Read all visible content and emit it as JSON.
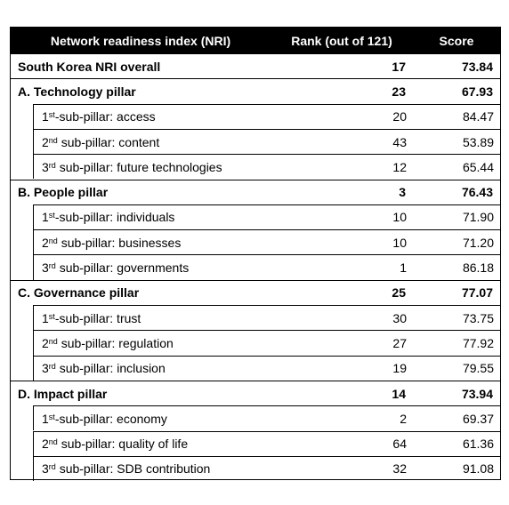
{
  "header": {
    "columns": [
      "Network readiness index (NRI)",
      "Rank (out of 121)",
      "Score"
    ]
  },
  "overall": {
    "label": "South Korea NRI overall",
    "rank": "17",
    "score": "73.84"
  },
  "pillars": [
    {
      "label": "A. Technology pillar",
      "rank": "23",
      "score": "67.93",
      "sub_pillars": [
        {
          "num": "1",
          "sup": "st",
          "rest": "-sub-pillar: access",
          "rank": "20",
          "score": "84.47"
        },
        {
          "num": "2",
          "sup": "nd",
          "rest": " sub-pillar: content",
          "rank": "43",
          "score": "53.89"
        },
        {
          "num": "3",
          "sup": "rd",
          "rest": " sub-pillar: future technologies",
          "rank": "12",
          "score": "65.44"
        }
      ]
    },
    {
      "label": "B. People pillar",
      "rank": "3",
      "score": "76.43",
      "sub_pillars": [
        {
          "num": "1",
          "sup": "st",
          "rest": "-sub-pillar: individuals",
          "rank": "10",
          "score": "71.90"
        },
        {
          "num": "2",
          "sup": "nd",
          "rest": " sub-pillar: businesses",
          "rank": "10",
          "score": "71.20"
        },
        {
          "num": "3",
          "sup": "rd",
          "rest": " sub-pillar: governments",
          "rank": "1",
          "score": "86.18"
        }
      ]
    },
    {
      "label": "C. Governance pillar",
      "rank": "25",
      "score": "77.07",
      "sub_pillars": [
        {
          "num": "1",
          "sup": "st",
          "rest": "-sub-pillar: trust",
          "rank": "30",
          "score": "73.75"
        },
        {
          "num": "2",
          "sup": "nd",
          "rest": " sub-pillar: regulation",
          "rank": "27",
          "score": "77.92"
        },
        {
          "num": "3",
          "sup": "rd",
          "rest": " sub-pillar: inclusion",
          "rank": "19",
          "score": "79.55"
        }
      ]
    },
    {
      "label": "D. Impact pillar",
      "rank": "14",
      "score": "73.94",
      "sub_pillars": [
        {
          "num": "1",
          "sup": "st",
          "rest": "-sub-pillar: economy",
          "rank": "2",
          "score": "69.37"
        },
        {
          "num": "2",
          "sup": "nd",
          "rest": " sub-pillar: quality of life",
          "rank": "64",
          "score": "61.36"
        },
        {
          "num": "3",
          "sup": "rd",
          "rest": " sub-pillar: SDB contribution",
          "rank": "32",
          "score": "91.08"
        }
      ]
    }
  ]
}
